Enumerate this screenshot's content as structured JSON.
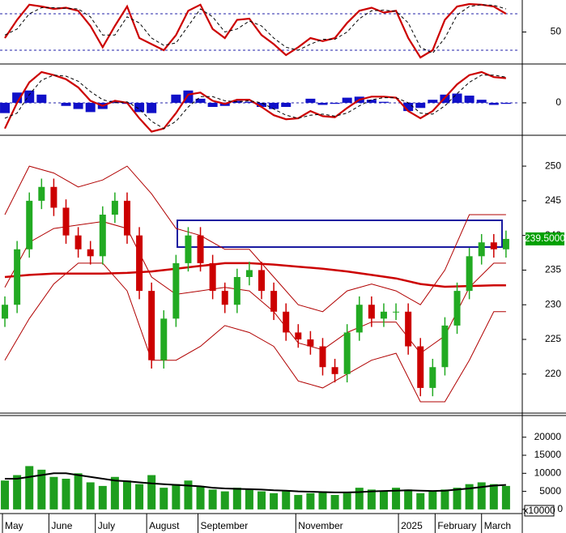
{
  "chart_data": [
    {
      "type": "line",
      "xlim": [
        -2,
        210
      ],
      "ylim": [
        -1.3,
        102.7
      ],
      "yticks": [
        50
      ],
      "levels": [
        80,
        20
      ],
      "level_color": "#2222aa",
      "x": [
        0,
        5,
        10,
        15,
        20,
        25,
        30,
        35,
        40,
        45,
        50,
        55,
        60,
        65,
        70,
        75,
        80,
        85,
        90,
        95,
        100,
        105,
        110,
        115,
        120,
        125,
        130,
        135,
        140,
        145,
        150,
        155,
        160,
        165,
        170,
        175,
        180,
        185,
        190,
        195,
        200,
        205
      ],
      "series": [
        {
          "color": "#cc0000",
          "values": [
            40,
            70,
            95,
            92,
            88,
            90,
            85,
            60,
            25,
            60,
            92,
            40,
            30,
            20,
            45,
            85,
            95,
            55,
            40,
            70,
            72,
            45,
            30,
            12,
            25,
            40,
            35,
            40,
            65,
            85,
            90,
            82,
            85,
            40,
            8,
            20,
            70,
            92,
            96,
            95,
            92,
            80
          ]
        },
        {
          "color": "#000000",
          "dashed": true,
          "values": [
            45,
            55,
            80,
            90,
            90,
            89,
            88,
            75,
            45,
            45,
            75,
            65,
            40,
            28,
            32,
            60,
            88,
            75,
            50,
            55,
            68,
            60,
            40,
            25,
            20,
            30,
            38,
            38,
            50,
            72,
            85,
            86,
            84,
            65,
            25,
            15,
            40,
            78,
            92,
            95,
            94,
            88
          ]
        }
      ]
    },
    {
      "type": "line",
      "xlim": [
        -2,
        210
      ],
      "ylim": [
        -3,
        3.7
      ],
      "yticks": [
        0
      ],
      "grid": true,
      "grid_color": "#2222aa",
      "x": [
        0,
        5,
        10,
        15,
        20,
        25,
        30,
        35,
        40,
        45,
        50,
        55,
        60,
        65,
        70,
        75,
        80,
        85,
        90,
        95,
        100,
        105,
        110,
        115,
        120,
        125,
        130,
        135,
        140,
        145,
        150,
        155,
        160,
        165,
        170,
        175,
        180,
        185,
        190,
        195,
        200,
        205
      ],
      "histogram": {
        "color": "#1010c8",
        "values": [
          -1,
          1,
          1.2,
          0.8,
          0,
          -0.3,
          -0.6,
          -0.9,
          -0.6,
          0.2,
          -0.1,
          -0.9,
          -1,
          0,
          0.8,
          1.2,
          0.4,
          -0.4,
          -0.3,
          0.2,
          0.1,
          -0.4,
          -0.6,
          -0.4,
          0,
          0.4,
          -0.2,
          -0.1,
          0.5,
          0.6,
          0.3,
          0.1,
          0,
          -0.8,
          -0.5,
          0.3,
          0.8,
          0.9,
          0.7,
          0.3,
          -0.2,
          -0.1
        ]
      },
      "series": [
        {
          "color": "#cc0000",
          "values": [
            -2.5,
            0,
            2,
            3,
            2.7,
            2.3,
            1.5,
            0.2,
            -0.3,
            0.2,
            0,
            -1.5,
            -2.8,
            -2.5,
            -1,
            0.8,
            1,
            0.2,
            -0.1,
            0.3,
            0.3,
            -0.4,
            -1.2,
            -1.6,
            -1.5,
            -0.8,
            -1.3,
            -1.4,
            -0.5,
            0.3,
            0.6,
            0.6,
            0.5,
            -0.8,
            -1.5,
            -0.8,
            0.5,
            1.8,
            2.7,
            3,
            2.5,
            2.4
          ]
        },
        {
          "color": "#000000",
          "dashed": true,
          "values": [
            -1.5,
            -1,
            0.8,
            2.2,
            2.7,
            2.6,
            2.1,
            1.1,
            0.3,
            0,
            0.1,
            -0.6,
            -1.8,
            -2.5,
            -1.8,
            -0.4,
            0.6,
            0.6,
            0.2,
            0.1,
            0.2,
            0,
            -0.6,
            -1.2,
            -1.5,
            -1.2,
            -1.1,
            -1.3,
            -1,
            -0.3,
            0.3,
            0.5,
            0.5,
            0,
            -1,
            -1.1,
            -0.3,
            0.9,
            2,
            2.7,
            2.7,
            2.5
          ]
        }
      ]
    },
    {
      "type": "candlestick",
      "xlim": [
        -2,
        210
      ],
      "ylim": [
        214.6,
        254.1
      ],
      "yticks": [
        220,
        225,
        230,
        235,
        240,
        245,
        250
      ],
      "up_color": "#22aa22",
      "down_color": "#cc0000",
      "x": [
        0,
        5,
        10,
        15,
        20,
        25,
        30,
        35,
        40,
        45,
        50,
        55,
        60,
        65,
        70,
        75,
        80,
        85,
        90,
        95,
        100,
        105,
        110,
        115,
        120,
        125,
        130,
        135,
        140,
        145,
        150,
        155,
        160,
        165,
        170,
        175,
        180,
        185,
        190,
        195,
        200,
        205
      ],
      "open": [
        228,
        230,
        238,
        245,
        247,
        244,
        240,
        238,
        237,
        243,
        245,
        240,
        232,
        222,
        228,
        236,
        240,
        236,
        232,
        230,
        234,
        235,
        232,
        229,
        226,
        225,
        224,
        221,
        220,
        226,
        230,
        228,
        229,
        229,
        224,
        218,
        221,
        227,
        232,
        237,
        239,
        238
      ],
      "high": [
        231.2,
        239.2,
        246.2,
        248.2,
        248.2,
        245.2,
        241.2,
        239.2,
        244.2,
        246.2,
        246.2,
        241.2,
        233.2,
        229.2,
        237.2,
        241.2,
        241.2,
        237.2,
        233.2,
        235.2,
        236.2,
        236.2,
        233.2,
        230.2,
        227.2,
        226.2,
        225.2,
        222.2,
        227.2,
        231.2,
        231.2,
        230.2,
        230.2,
        230.2,
        225.2,
        222.2,
        228.2,
        233.2,
        238.2,
        240.2,
        240.2,
        240.7
      ],
      "low": [
        226.8,
        228.8,
        236.8,
        243.8,
        242.8,
        238.8,
        236.8,
        235.8,
        235.8,
        241.8,
        238.8,
        230.8,
        220.8,
        220.8,
        226.8,
        234.8,
        234.8,
        230.8,
        228.8,
        228.8,
        232.8,
        230.8,
        227.8,
        224.8,
        223.8,
        222.8,
        219.8,
        218.8,
        218.8,
        224.8,
        226.8,
        226.8,
        227.8,
        222.8,
        216.8,
        216.8,
        219.8,
        225.8,
        230.8,
        235.8,
        236.8,
        236.8
      ],
      "close": [
        230,
        238,
        245,
        247,
        244,
        240,
        238,
        237,
        243,
        245,
        240,
        232,
        222,
        228,
        236,
        240,
        236,
        232,
        230,
        234,
        235,
        232,
        229,
        226,
        225,
        224,
        221,
        220,
        226,
        230,
        228,
        229,
        229,
        224,
        218,
        221,
        227,
        232,
        237,
        239,
        238,
        239.5
      ],
      "last_price": {
        "value": 239.5,
        "label": "239.5000"
      },
      "last_price_color": "#00a000",
      "overlays": [
        {
          "color": "#b00000",
          "x": [
            0,
            10,
            20,
            30,
            40,
            50,
            60,
            70,
            80,
            90,
            100,
            110,
            120,
            130,
            140,
            150,
            160,
            170,
            180,
            190,
            200,
            205
          ],
          "values": [
            243,
            250,
            249,
            247,
            248,
            250,
            246,
            241,
            240,
            238,
            238,
            234,
            230,
            229,
            232,
            233,
            232,
            230,
            235,
            243,
            243,
            243
          ]
        },
        {
          "color": "#b00000",
          "x": [
            0,
            10,
            20,
            30,
            40,
            50,
            60,
            70,
            80,
            90,
            100,
            110,
            120,
            130,
            140,
            150,
            160,
            170,
            180,
            190,
            200,
            205
          ],
          "values": [
            232.5,
            239,
            241,
            241.5,
            242,
            241,
            234,
            231.5,
            232,
            232.5,
            232,
            229,
            224.5,
            223.5,
            226,
            227.5,
            227.5,
            223,
            225.5,
            232.5,
            236,
            236
          ]
        },
        {
          "color": "#b00000",
          "x": [
            0,
            10,
            20,
            30,
            40,
            50,
            60,
            70,
            80,
            90,
            100,
            110,
            120,
            130,
            140,
            150,
            160,
            170,
            180,
            190,
            200,
            205
          ],
          "values": [
            222,
            228,
            233,
            236,
            236,
            232,
            222,
            222,
            224,
            227,
            226,
            224,
            219,
            218,
            220,
            222,
            223,
            216,
            216,
            222,
            229,
            229
          ]
        },
        {
          "color": "#cc0000",
          "thick": true,
          "x": [
            0,
            10,
            20,
            30,
            40,
            50,
            60,
            70,
            80,
            90,
            100,
            110,
            120,
            130,
            140,
            150,
            160,
            170,
            180,
            190,
            200,
            205
          ],
          "values": [
            234,
            234.3,
            234.5,
            234.5,
            234.5,
            234.6,
            234.8,
            235.2,
            235.6,
            236,
            236,
            235.8,
            235.5,
            235.2,
            234.8,
            234.3,
            233.8,
            233,
            232.6,
            232.7,
            232.8,
            232.8
          ]
        }
      ]
    },
    {
      "type": "bar",
      "xlim": [
        -2,
        210
      ],
      "ylim": [
        -700,
        26000
      ],
      "yticks": [
        0,
        5000,
        10000,
        15000,
        20000
      ],
      "unit_label": "x10000",
      "color": "#1e9e1e",
      "x": [
        0,
        5,
        10,
        15,
        20,
        25,
        30,
        35,
        40,
        45,
        50,
        55,
        60,
        65,
        70,
        75,
        80,
        85,
        90,
        95,
        100,
        105,
        110,
        115,
        120,
        125,
        130,
        135,
        140,
        145,
        150,
        155,
        160,
        165,
        170,
        175,
        180,
        185,
        190,
        195,
        200,
        205
      ],
      "values": [
        8000,
        9500,
        12000,
        11000,
        9000,
        8500,
        10000,
        7500,
        6500,
        9000,
        8000,
        7000,
        9500,
        6000,
        7000,
        8000,
        6500,
        5500,
        5000,
        6000,
        5500,
        5000,
        4500,
        5000,
        4000,
        4500,
        5000,
        4000,
        4500,
        6000,
        5500,
        5000,
        6000,
        5500,
        4500,
        5000,
        5500,
        6000,
        7000,
        7500,
        7000,
        6500
      ],
      "series": [
        {
          "color": "#000000",
          "values": [
            8500,
            8500,
            9000,
            9500,
            10000,
            10000,
            9500,
            9000,
            8500,
            8000,
            7800,
            7500,
            7200,
            7000,
            6800,
            6600,
            6400,
            6000,
            5800,
            5700,
            5600,
            5500,
            5300,
            5200,
            5000,
            4900,
            4800,
            4700,
            4700,
            4800,
            5000,
            5100,
            5200,
            5300,
            5200,
            5100,
            5200,
            5500,
            5800,
            6200,
            6600,
            6800
          ]
        }
      ],
      "xticks": [
        {
          "value": -1,
          "label": "May"
        },
        {
          "value": 18,
          "label": "June"
        },
        {
          "value": 37,
          "label": "July"
        },
        {
          "value": 58,
          "label": "August"
        },
        {
          "value": 79,
          "label": "September"
        },
        {
          "value": 119,
          "label": "November"
        },
        {
          "value": 161,
          "label": "2025"
        },
        {
          "value": 176,
          "label": "February"
        },
        {
          "value": 195,
          "label": "March"
        }
      ]
    }
  ]
}
